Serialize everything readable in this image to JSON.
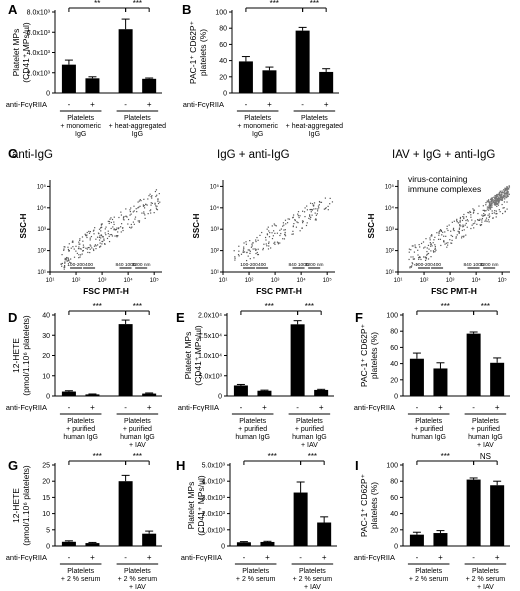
{
  "figure": {
    "row_labels": {
      "groups": "",
      "minus": "-",
      "plus": "+"
    }
  },
  "chart_data": [
    {
      "panel": "A",
      "type": "bar",
      "ylabel_lines": [
        "Platelet MPs",
        "(CD41⁺ MPs/µl)"
      ],
      "ylim": [
        0,
        8000
      ],
      "yticks": [
        {
          "v": 0,
          "t": "0"
        },
        {
          "v": 2000,
          "t": "2.0x10³"
        },
        {
          "v": 4000,
          "t": "4.0x10³"
        },
        {
          "v": 6000,
          "t": "6.0x10³"
        },
        {
          "v": 8000,
          "t": "8.0x10³"
        }
      ],
      "values": [
        2800,
        1450,
        6300,
        1400
      ],
      "errors": [
        450,
        150,
        1000,
        80
      ],
      "treatment_label": "anti-FcγRIIA",
      "treatment": [
        "-",
        "+",
        "-",
        "+"
      ],
      "groups": [
        [
          "Platelets",
          "+ monomeric",
          "IgG"
        ],
        [
          "Platelets",
          "+ heat-aggregated",
          "IgG"
        ]
      ],
      "significance": [
        {
          "from": 0,
          "to": 2,
          "text": "**"
        },
        {
          "from": 2,
          "to": 3,
          "text": "***"
        }
      ]
    },
    {
      "panel": "B",
      "type": "bar",
      "ylabel_lines": [
        "PAC-1⁺ CD62P⁺",
        "platelets (%)"
      ],
      "ylim": [
        0,
        100
      ],
      "yticks": [
        {
          "v": 0,
          "t": "0"
        },
        {
          "v": 20,
          "t": "20"
        },
        {
          "v": 40,
          "t": "40"
        },
        {
          "v": 60,
          "t": "60"
        },
        {
          "v": 80,
          "t": "80"
        },
        {
          "v": 100,
          "t": "100"
        }
      ],
      "values": [
        39,
        28,
        77,
        26
      ],
      "errors": [
        6,
        4,
        4,
        4
      ],
      "treatment_label": "anti-FcγRIIA",
      "treatment": [
        "-",
        "+",
        "-",
        "+"
      ],
      "groups": [
        [
          "Platelets",
          "+ monomeric",
          "IgG"
        ],
        [
          "Platelets",
          "+ heat-aggregated",
          "IgG"
        ]
      ],
      "significance": [
        {
          "from": 0,
          "to": 2,
          "text": "***"
        },
        {
          "from": 2,
          "to": 3,
          "text": "***"
        }
      ]
    },
    {
      "panel": "C",
      "type": "scatter",
      "subpanels": [
        {
          "title": "anti-IgG",
          "annotation": [],
          "cluster": false
        },
        {
          "title": "IgG + anti-IgG",
          "annotation": [],
          "cluster": false
        },
        {
          "title": "IAV + IgG + anti-IgG",
          "annotation": [
            "virus-containing",
            "immune complexes"
          ],
          "cluster": true
        }
      ],
      "xlabel": "FSC PMT-H",
      "ylabel": "SSC-H",
      "xlim_log10": [
        1,
        5.3
      ],
      "ylim_log10": [
        1,
        5.3
      ],
      "tick_labels": [
        "10¹",
        "10²",
        "10³",
        "10⁴",
        "10⁵"
      ],
      "size_markers": [
        {
          "t": "100-200",
          "x": 2.0
        },
        {
          "t": "400",
          "x": 2.5
        },
        {
          "t": "840 1000",
          "x": 3.9
        },
        {
          "t": "3200 nm",
          "x": 4.5
        }
      ]
    },
    {
      "panel": "D",
      "type": "bar",
      "ylabel_lines": [
        "12-HETE",
        "(pmol/1.10⁶ platelets)"
      ],
      "ylim": [
        0,
        40
      ],
      "yticks": [
        {
          "v": 0,
          "t": "0"
        },
        {
          "v": 10,
          "t": "10"
        },
        {
          "v": 20,
          "t": "20"
        },
        {
          "v": 30,
          "t": "30"
        },
        {
          "v": 40,
          "t": "40"
        }
      ],
      "values": [
        2.2,
        0.8,
        35.5,
        1.2
      ],
      "errors": [
        0.4,
        0.2,
        2.0,
        0.3
      ],
      "treatment_label": "anti-FcγRIIA",
      "treatment": [
        "-",
        "+",
        "-",
        "+"
      ],
      "groups": [
        [
          "Platelets",
          "+ purified",
          "human IgG"
        ],
        [
          "Platelets",
          "+ purified",
          "human IgG",
          "+ IAV"
        ]
      ],
      "significance": [
        {
          "from": 0,
          "to": 2,
          "text": "***"
        },
        {
          "from": 2,
          "to": 3,
          "text": "***"
        }
      ]
    },
    {
      "panel": "E",
      "type": "bar",
      "ylabel_lines": [
        "Platelet MPs",
        "(CD41⁺ MPs/µl)"
      ],
      "ylim": [
        0,
        20000
      ],
      "yticks": [
        {
          "v": 0,
          "t": "0"
        },
        {
          "v": 5000,
          "t": "5.0x10³"
        },
        {
          "v": 10000,
          "t": "1.0x10⁴"
        },
        {
          "v": 15000,
          "t": "1.5x10⁴"
        },
        {
          "v": 20000,
          "t": "2.0x10⁴"
        }
      ],
      "values": [
        2600,
        1300,
        17700,
        1500
      ],
      "errors": [
        250,
        150,
        900,
        150
      ],
      "treatment_label": "anti-FcγRIIA",
      "treatment": [
        "-",
        "+",
        "-",
        "+"
      ],
      "groups": [
        [
          "Platelets",
          "+ purified",
          "human IgG"
        ],
        [
          "Platelets",
          "+ purified",
          "human IgG",
          "+ IAV"
        ]
      ],
      "significance": [
        {
          "from": 0,
          "to": 2,
          "text": "***"
        },
        {
          "from": 2,
          "to": 3,
          "text": "***"
        }
      ]
    },
    {
      "panel": "F",
      "type": "bar",
      "ylabel_lines": [
        "PAC-1⁺ CD62P⁺",
        "platelets (%)"
      ],
      "ylim": [
        0,
        100
      ],
      "yticks": [
        {
          "v": 0,
          "t": "0"
        },
        {
          "v": 20,
          "t": "20"
        },
        {
          "v": 40,
          "t": "40"
        },
        {
          "v": 60,
          "t": "60"
        },
        {
          "v": 80,
          "t": "80"
        },
        {
          "v": 100,
          "t": "100"
        }
      ],
      "values": [
        46,
        34,
        77,
        41
      ],
      "errors": [
        7,
        7,
        2,
        6
      ],
      "treatment_label": "anti-FcγRIIA",
      "treatment": [
        "-",
        "+",
        "-",
        "+"
      ],
      "groups": [
        [
          "Platelets",
          "+ purified",
          "human IgG"
        ],
        [
          "Platelets",
          "+ purified",
          "human IgG",
          "+ IAV"
        ]
      ],
      "significance": [
        {
          "from": 0,
          "to": 2,
          "text": "***"
        },
        {
          "from": 2,
          "to": 3,
          "text": "***"
        }
      ]
    },
    {
      "panel": "G",
      "type": "bar",
      "ylabel_lines": [
        "12-HETE",
        "(pmol/1.10⁶ platelets)"
      ],
      "ylim": [
        0,
        25
      ],
      "yticks": [
        {
          "v": 0,
          "t": "0"
        },
        {
          "v": 5,
          "t": "5"
        },
        {
          "v": 10,
          "t": "10"
        },
        {
          "v": 15,
          "t": "15"
        },
        {
          "v": 20,
          "t": "20"
        },
        {
          "v": 25,
          "t": "25"
        }
      ],
      "values": [
        1.3,
        0.9,
        20.0,
        3.8
      ],
      "errors": [
        0.3,
        0.2,
        1.8,
        0.8
      ],
      "treatment_label": "anti-FcγRIIA",
      "treatment": [
        "-",
        "+",
        "-",
        "+"
      ],
      "groups": [
        [
          "Platelets",
          "+ 2 % serum"
        ],
        [
          "Platelets",
          "+ 2 % serum",
          "+ IAV"
        ]
      ],
      "significance": [
        {
          "from": 0,
          "to": 2,
          "text": "***"
        },
        {
          "from": 2,
          "to": 3,
          "text": "***"
        }
      ]
    },
    {
      "panel": "H",
      "type": "bar",
      "ylabel_lines": [
        "Platelet MPs",
        "(CD41⁺ MPs/µl)"
      ],
      "ylim": [
        0,
        5000
      ],
      "yticks": [
        {
          "v": 0,
          "t": "0"
        },
        {
          "v": 1000,
          "t": "1.0x10³"
        },
        {
          "v": 2000,
          "t": "2.0x10³"
        },
        {
          "v": 3000,
          "t": "3.0x10³"
        },
        {
          "v": 4000,
          "t": "4.0x10³"
        },
        {
          "v": 5000,
          "t": "5.0x10³"
        }
      ],
      "values": [
        230,
        250,
        3300,
        1450
      ],
      "errors": [
        40,
        40,
        650,
        350
      ],
      "treatment_label": "anti-FcγRIIA",
      "treatment": [
        "-",
        "+",
        "-",
        "+"
      ],
      "groups": [
        [
          "Platelets",
          "+ 2 % serum"
        ],
        [
          "Platelets",
          "+ 2 % serum",
          "+ IAV"
        ]
      ],
      "significance": [
        {
          "from": 0,
          "to": 2,
          "text": "***"
        },
        {
          "from": 2,
          "to": 3,
          "text": "***"
        }
      ]
    },
    {
      "panel": "I",
      "type": "bar",
      "ylabel_lines": [
        "PAC-1⁺ CD62P⁺",
        "platelets (%)"
      ],
      "ylim": [
        0,
        100
      ],
      "yticks": [
        {
          "v": 0,
          "t": "0"
        },
        {
          "v": 20,
          "t": "20"
        },
        {
          "v": 40,
          "t": "40"
        },
        {
          "v": 60,
          "t": "60"
        },
        {
          "v": 80,
          "t": "80"
        },
        {
          "v": 100,
          "t": "100"
        }
      ],
      "values": [
        14,
        16,
        82,
        75
      ],
      "errors": [
        3,
        3,
        2,
        5
      ],
      "treatment_label": "anti-FcγRIIA",
      "treatment": [
        "-",
        "+",
        "-",
        "+"
      ],
      "groups": [
        [
          "Platelets",
          "+ 2 % serum"
        ],
        [
          "Platelets",
          "+ 2 % serum",
          "+ IAV"
        ]
      ],
      "significance": [
        {
          "from": 0,
          "to": 2,
          "text": "***"
        },
        {
          "from": 2,
          "to": 3,
          "text": "NS"
        }
      ]
    }
  ]
}
